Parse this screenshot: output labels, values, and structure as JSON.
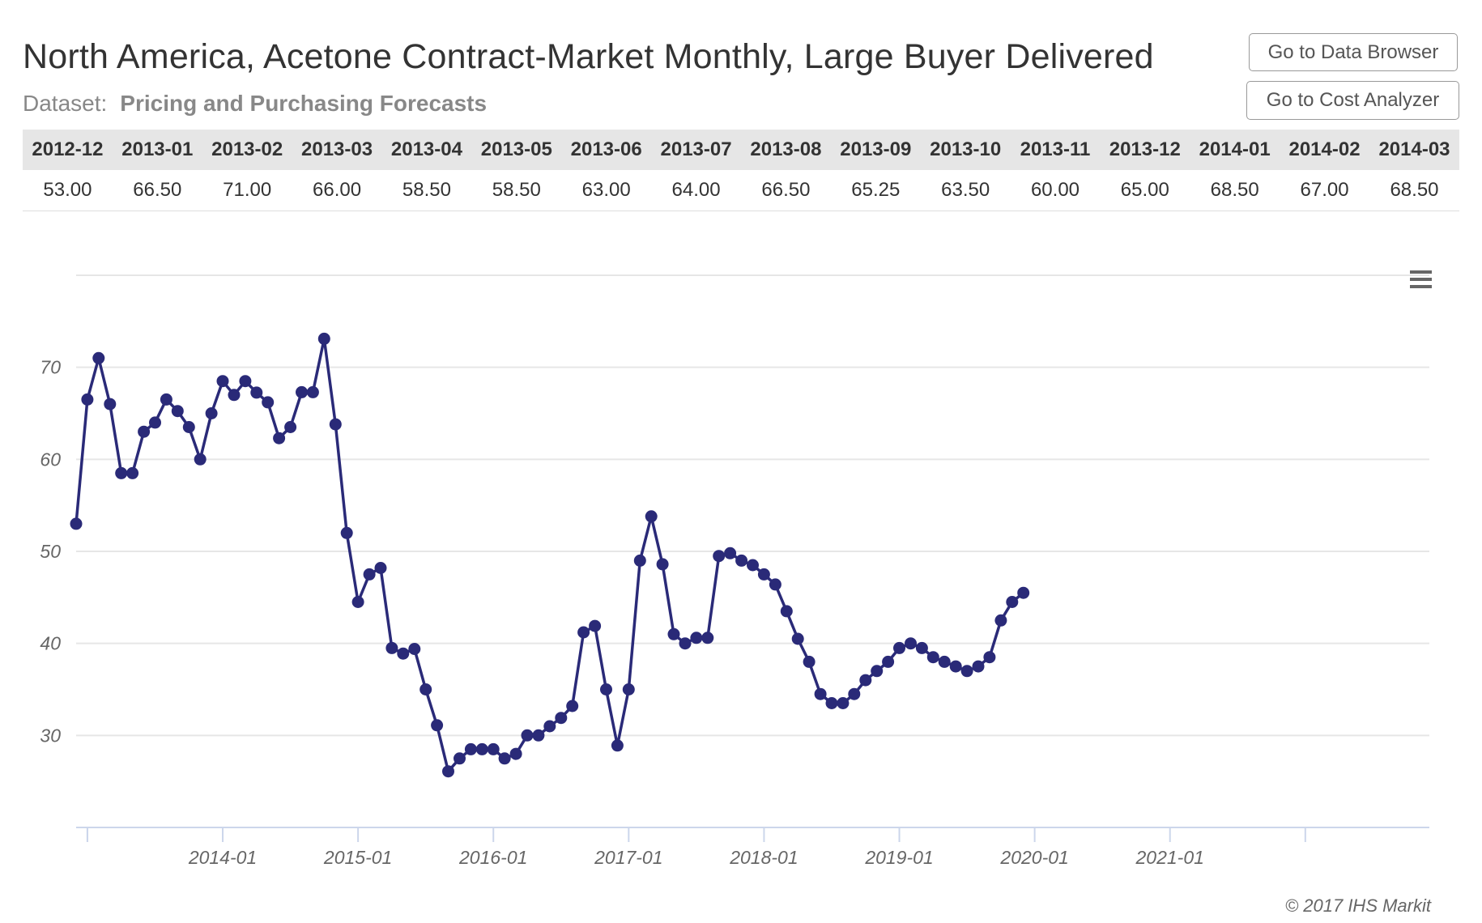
{
  "header": {
    "title": "North America, Acetone Contract-Market Monthly, Large Buyer Delivered",
    "dataset_label": "Dataset:",
    "dataset_value": "Pricing and Purchasing Forecasts",
    "btn_data_browser": "Go to Data Browser",
    "btn_cost_analyzer": "Go to Cost Analyzer"
  },
  "table": {
    "columns": [
      "2012-12",
      "2013-01",
      "2013-02",
      "2013-03",
      "2013-04",
      "2013-05",
      "2013-06",
      "2013-07",
      "2013-08",
      "2013-09",
      "2013-10",
      "2013-11",
      "2013-12",
      "2014-01",
      "2014-02",
      "2014-03"
    ],
    "values": [
      "53.00",
      "66.50",
      "71.00",
      "66.00",
      "58.50",
      "58.50",
      "63.00",
      "64.00",
      "66.50",
      "65.25",
      "63.50",
      "60.00",
      "65.00",
      "68.50",
      "67.00",
      "68.50"
    ]
  },
  "menu_icon": "hamburger-menu-icon",
  "credits": "© 2017 IHS Markit",
  "colors": {
    "series": "#2a2a78",
    "grid": "#e6e6e6",
    "axis": "#ccd6eb"
  },
  "chart_data": {
    "type": "line",
    "title": "",
    "xlabel": "",
    "ylabel": "",
    "x_start": "2012-12",
    "x_ticks": [
      "2014-01",
      "2015-01",
      "2016-01",
      "2017-01",
      "2018-01",
      "2019-01",
      "2020-01",
      "2021-01"
    ],
    "y_ticks": [
      30,
      40,
      50,
      60,
      70
    ],
    "ylim": [
      20,
      80
    ],
    "xlim": [
      "2012-12",
      "2022-12"
    ],
    "grid": true,
    "marker": "circle",
    "series": [
      {
        "name": "",
        "values": [
          53.0,
          66.5,
          71.0,
          66.0,
          58.5,
          58.5,
          63.0,
          64.0,
          66.5,
          65.25,
          63.5,
          60.0,
          65.0,
          68.5,
          67.0,
          68.5,
          67.25,
          66.2,
          62.3,
          63.5,
          67.3,
          67.3,
          73.1,
          63.8,
          52.0,
          44.5,
          47.5,
          48.2,
          39.5,
          38.9,
          39.4,
          35.0,
          31.1,
          26.1,
          27.5,
          28.5,
          28.5,
          28.5,
          27.5,
          28.0,
          30.0,
          30.0,
          31.0,
          31.9,
          33.2,
          41.2,
          41.9,
          35.0,
          28.9,
          35.0,
          49.0,
          53.8,
          48.6,
          41.0,
          40.0,
          40.6,
          40.6,
          49.5,
          49.8,
          49.0,
          48.5,
          47.5,
          46.4,
          43.5,
          40.5,
          38.0,
          34.5,
          33.5,
          33.5,
          34.5,
          36.0,
          37.0,
          38.0,
          39.5,
          40.0,
          39.5,
          38.5,
          38.0,
          37.5,
          37.0,
          37.5,
          38.5,
          42.5,
          44.5,
          45.5
        ]
      }
    ]
  }
}
